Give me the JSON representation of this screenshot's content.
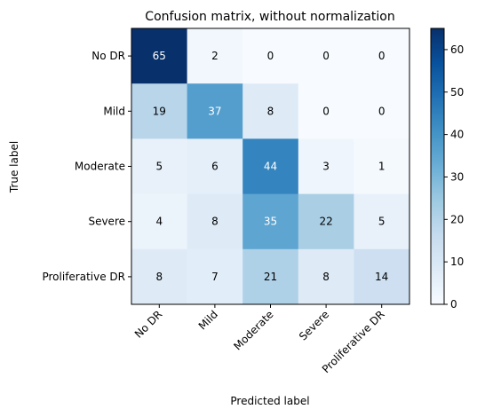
{
  "chart_data": {
    "type": "heatmap",
    "title": "Confusion matrix, without normalization",
    "xlabel": "Predicted label",
    "ylabel": "True label",
    "x_categories": [
      "No DR",
      "Mild",
      "Moderate",
      "Severe",
      "Proliferative DR"
    ],
    "y_categories": [
      "No DR",
      "Mild",
      "Moderate",
      "Severe",
      "Proliferative DR"
    ],
    "values": [
      [
        65,
        2,
        0,
        0,
        0
      ],
      [
        19,
        37,
        8,
        0,
        0
      ],
      [
        5,
        6,
        44,
        3,
        1
      ],
      [
        4,
        8,
        35,
        22,
        5
      ],
      [
        8,
        7,
        21,
        8,
        14
      ]
    ],
    "colorbar": {
      "min": 0,
      "max": 65,
      "ticks": [
        0,
        10,
        20,
        30,
        40,
        50,
        60
      ],
      "colormap": "Blues"
    },
    "grid": false
  }
}
